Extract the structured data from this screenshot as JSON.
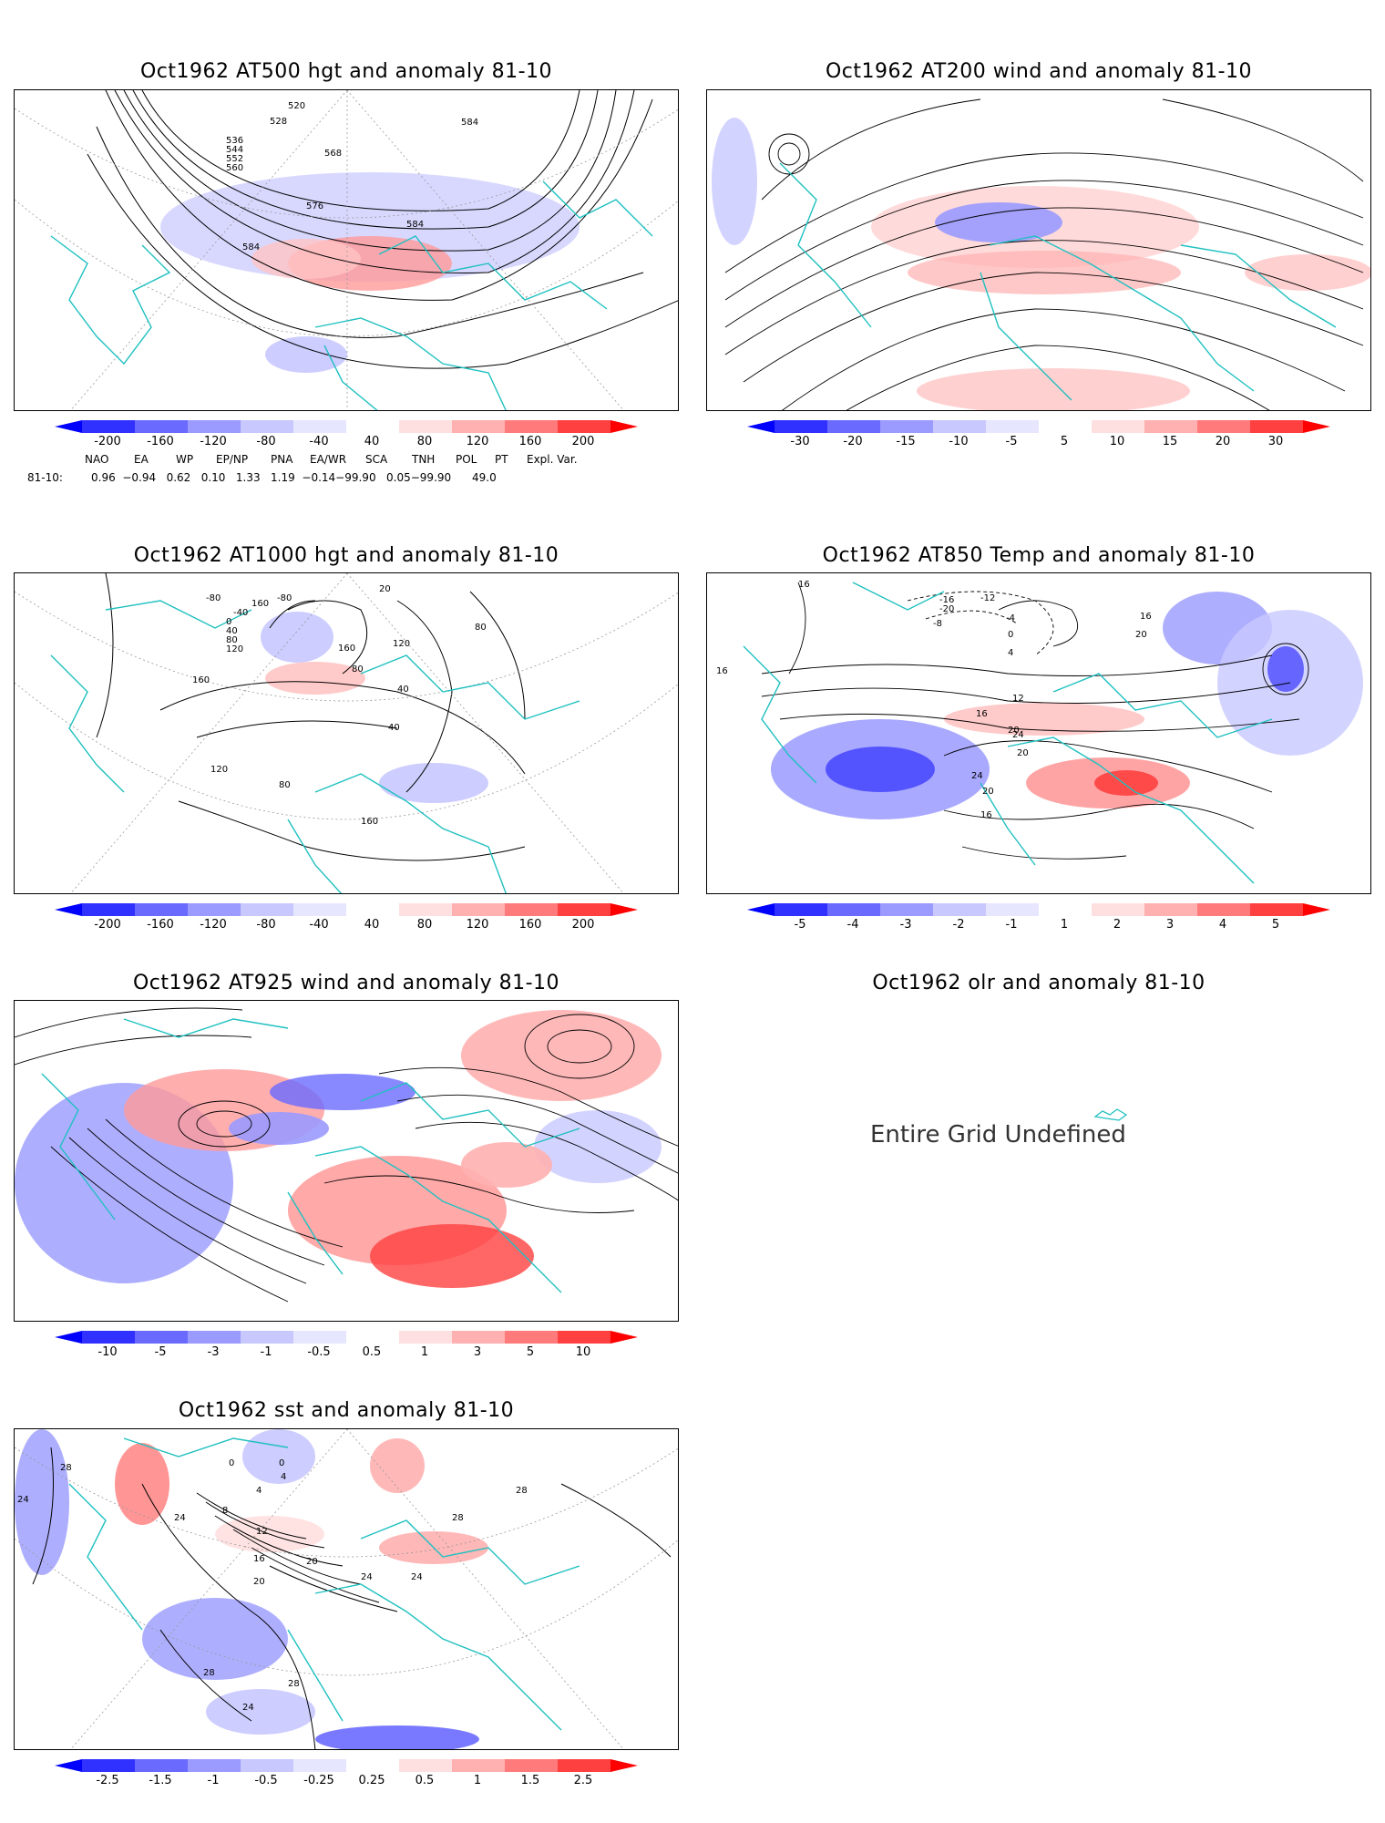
{
  "panels": [
    {
      "id": "p500",
      "title": "Oct1962 AT500 hgt and anomaly 81-10",
      "colorbar": [
        "-200",
        "-160",
        "-120",
        "-80",
        "-40",
        "40",
        "80",
        "120",
        "160",
        "200"
      ],
      "contour_labels": [
        "520",
        "528",
        "536",
        "544",
        "552",
        "560",
        "568",
        "576",
        "584",
        "584",
        "584"
      ]
    },
    {
      "id": "p200",
      "title": "Oct1962 AT200 wind and anomaly 81-10",
      "colorbar": [
        "-30",
        "-20",
        "-15",
        "-10",
        "-5",
        "5",
        "10",
        "15",
        "20",
        "30"
      ],
      "contour_labels": []
    },
    {
      "id": "p1000",
      "title": "Oct1962 AT1000 hgt and anomaly 81-10",
      "colorbar": [
        "-200",
        "-160",
        "-120",
        "-80",
        "-40",
        "40",
        "80",
        "120",
        "160",
        "200"
      ],
      "contour_labels": [
        "-80",
        "-40",
        "0",
        "40",
        "80",
        "120",
        "160",
        "160",
        "160",
        "120",
        "80",
        "40",
        "80",
        "40",
        "120",
        "160",
        "20",
        "-80",
        "80"
      ]
    },
    {
      "id": "p850",
      "title": "Oct1962 AT850 Temp and anomaly 81-10",
      "colorbar": [
        "-5",
        "-4",
        "-3",
        "-2",
        "-1",
        "1",
        "2",
        "3",
        "4",
        "5"
      ],
      "contour_labels": [
        "16",
        "-16",
        "-12",
        "-20",
        "-8",
        "-4",
        "0",
        "4",
        "12",
        "16",
        "20",
        "24",
        "20",
        "24",
        "20",
        "16",
        "20",
        "16",
        "16"
      ]
    },
    {
      "id": "p925",
      "title": "Oct1962 AT925 wind and anomaly 81-10",
      "colorbar": [
        "-10",
        "-5",
        "-3",
        "-1",
        "-0.5",
        "0.5",
        "1",
        "3",
        "5",
        "10"
      ],
      "contour_labels": []
    },
    {
      "id": "polr",
      "title": "Oct1962 olr and anomaly 81-10",
      "colorbar": [],
      "contour_labels": []
    },
    {
      "id": "psst",
      "title": "Oct1962 sst and anomaly 81-10",
      "colorbar": [
        "-2.5",
        "-1.5",
        "-1",
        "-0.5",
        "-0.25",
        "0.25",
        "0.5",
        "1",
        "1.5",
        "2.5"
      ],
      "contour_labels": [
        "28",
        "24",
        "24",
        "0",
        "0",
        "4",
        "4",
        "8",
        "12",
        "16",
        "20",
        "24",
        "28",
        "28",
        "28",
        "24",
        "20",
        "28",
        "24"
      ]
    }
  ],
  "teleconnections": {
    "headers": [
      "NAO",
      "EA",
      "WP",
      "EP/NP",
      "PNA",
      "EA/WR",
      "SCA",
      "TNH",
      "POL",
      "PT",
      "Expl. Var."
    ],
    "row_label": "81-10:",
    "values": "0.96  −0.94   0.62   0.10   1.33   1.19  −0.14−99.90   0.05−99.90      49.0"
  },
  "undefined_message": "Entire Grid Undefined",
  "colors": {
    "land_outline": "#20c0c0",
    "neg_strong": "#1f1fff",
    "pos_strong": "#ff1f1f",
    "grid": "#999999"
  }
}
